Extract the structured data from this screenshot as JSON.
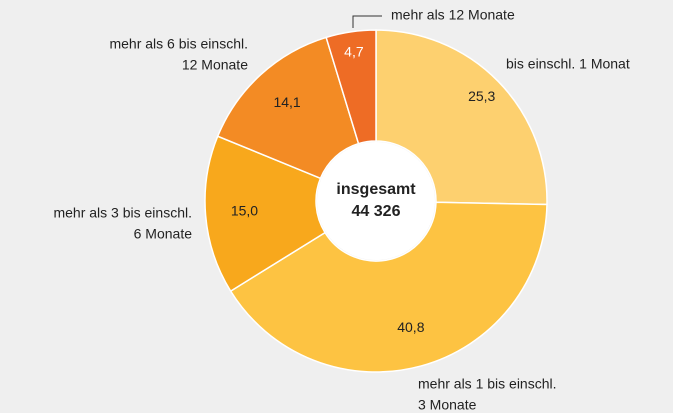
{
  "chart_data": {
    "type": "donut",
    "categories": [
      [
        "bis einschl. 1 Monat"
      ],
      [
        "mehr als 1 bis einschl.",
        "3 Monate"
      ],
      [
        "mehr als 3 bis einschl.",
        "6 Monate"
      ],
      [
        "mehr als 6 bis einschl.",
        "12 Monate"
      ],
      [
        "mehr als 12 Monate"
      ]
    ],
    "values": [
      25.3,
      40.8,
      15.0,
      14.1,
      4.7
    ],
    "value_labels": [
      "25,3",
      "40,8",
      "15,0",
      "14,1",
      "4,7"
    ],
    "colors": [
      "#fdd06f",
      "#fdc342",
      "#f8a81c",
      "#f38b24",
      "#ee6c25"
    ],
    "center_label": [
      "insgesamt",
      "44 326"
    ]
  }
}
